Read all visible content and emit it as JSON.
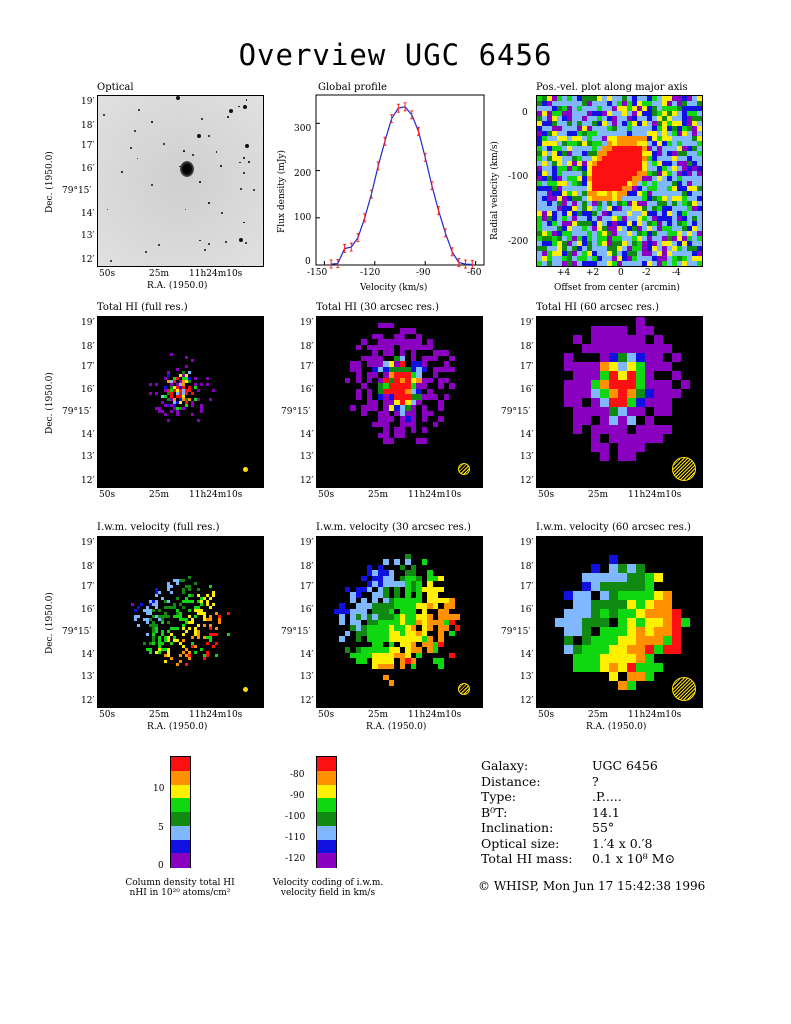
{
  "title": "Overview UGC 6456",
  "panel_titles": {
    "optical": "Optical",
    "profile": "Global profile",
    "pv": "Pos.-vel. plot along major axis",
    "hi_full": "Total HI (full res.)",
    "hi_30": "Total HI (30 arcsec res.)",
    "hi_60": "Total HI (60 arcsec res.)",
    "vel_full": "I.w.m. velocity (full res.)",
    "vel_30": "I.w.m. velocity (30 arcsec res.)",
    "vel_60": "I.w.m. velocity (60 arcsec res.)"
  },
  "axes": {
    "dec_label": "Dec. (1950.0)",
    "ra_label": "R.A. (1950.0)",
    "dec_ticks": [
      "19′",
      "18′",
      "17′",
      "16′",
      "79°15′",
      "14′",
      "13′",
      "12′"
    ],
    "ra_ticks": [
      "50s",
      "25m",
      "11h24m10s"
    ],
    "profile_xlabel": "Velocity (km/s)",
    "profile_ylabel": "Flux density (mJy)",
    "profile_xticks": [
      "-150",
      "-120",
      "-90",
      "-60"
    ],
    "profile_yticks": [
      "0",
      "100",
      "200",
      "300"
    ],
    "pv_xlabel": "Offset from center (arcmin)",
    "pv_ylabel": "Radial velocity (km/s)",
    "pv_xticks": [
      "+4",
      "+2",
      "0",
      "-2",
      "-4"
    ],
    "pv_yticks": [
      "0",
      "-100",
      "-200"
    ]
  },
  "chart_data": {
    "type": "line",
    "title": "Global profile",
    "xlabel": "Velocity (km/s)",
    "ylabel": "Flux density (mJy)",
    "xlim": [
      -155,
      -55
    ],
    "ylim": [
      0,
      360
    ],
    "x": [
      -146,
      -142,
      -138,
      -134,
      -130,
      -126,
      -122,
      -118,
      -114,
      -110,
      -106,
      -102,
      -98,
      -94,
      -90,
      -86,
      -82,
      -78,
      -74,
      -70,
      -66,
      -62
    ],
    "y": [
      2,
      3,
      35,
      38,
      58,
      100,
      150,
      210,
      262,
      310,
      332,
      335,
      318,
      283,
      228,
      168,
      115,
      68,
      28,
      5,
      2,
      1
    ],
    "series_color": "#1a2acc",
    "error_color": "#ff2020",
    "grid": false
  },
  "colorbars": {
    "density": {
      "ticks": [
        "0",
        "5",
        "10"
      ],
      "caption_line1": "Column density total HI",
      "caption_line2": "nHI in 10²⁰ atoms/cm²",
      "colors": [
        "#8a00c0",
        "#1010e0",
        "#80b8ff",
        "#108a10",
        "#10d810",
        "#fff000",
        "#ff9000",
        "#ff1010"
      ]
    },
    "velocity": {
      "ticks": [
        "-80",
        "-90",
        "-100",
        "-110",
        "-120"
      ],
      "caption_line1": "Velocity coding of i.w.m.",
      "caption_line2": "velocity field in km/s",
      "colors": [
        "#ff1010",
        "#ff9000",
        "#fff000",
        "#10d810",
        "#108a10",
        "#80b8ff",
        "#1010e0",
        "#8a00c0"
      ]
    }
  },
  "galaxy_info": [
    {
      "label": "Galaxy:",
      "value": "UGC 6456"
    },
    {
      "label": "Distance:",
      "value": "?"
    },
    {
      "label": "Type:",
      "value": ".P....."
    },
    {
      "label": "B⁰T:",
      "value": "14.1"
    },
    {
      "label": "Inclination:",
      "value": "55°"
    },
    {
      "label": "Optical size:",
      "value": "1.′4 x 0.′8"
    },
    {
      "label": "Total HI mass:",
      "value": "0.1 x 10⁸ M⊙"
    }
  ],
  "footer": "© WHISP, Mon Jun 17 15:42:38 1996",
  "colors": {
    "red": "#ff1010",
    "orange": "#ff9000",
    "yellow": "#fff000",
    "green": "#10d810",
    "darkgreen": "#108a10",
    "lightblue": "#80b8ff",
    "blue": "#1010e0",
    "purple": "#8a00c0",
    "grey": "#606060",
    "beam": "#ffe000"
  }
}
